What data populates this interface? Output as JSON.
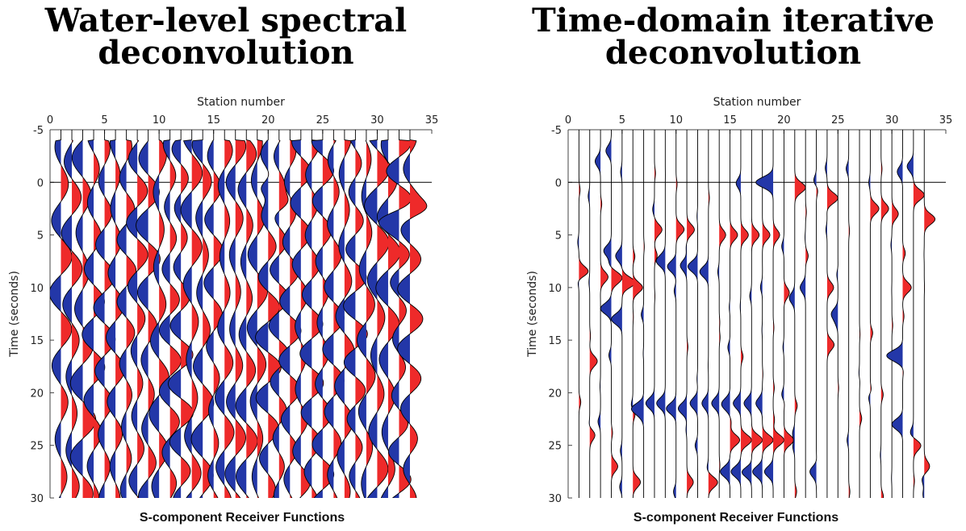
{
  "panels": [
    {
      "title_line1": "Water-level spectral",
      "title_line2": "deconvolution",
      "caption": "S-component Receiver Functions"
    },
    {
      "title_line1": "Time-domain iterative",
      "title_line2": "deconvolution",
      "caption": "S-component Receiver Functions"
    }
  ],
  "colors": {
    "positive": "#ee2a2a",
    "negative": "#2337a8",
    "trace": "#000000",
    "zero_line": "#000000"
  },
  "chart_data": [
    {
      "type": "wiggle",
      "title": "Water-level spectral deconvolution",
      "xlabel": "Station number",
      "ylabel": "Time (seconds)",
      "xlim": [
        0,
        35
      ],
      "ylim": [
        -5,
        30
      ],
      "y_reversed": true,
      "x_ticks": [
        0,
        5,
        10,
        15,
        20,
        25,
        30,
        35
      ],
      "y_ticks": [
        -5,
        0,
        5,
        10,
        15,
        20,
        25,
        30
      ],
      "stations": [
        1,
        2,
        3,
        4,
        5,
        6,
        7,
        8,
        9,
        10,
        11,
        12,
        13,
        14,
        15,
        16,
        17,
        18,
        19,
        20,
        21,
        22,
        23,
        24,
        25,
        26,
        27,
        28,
        29,
        30,
        31,
        32,
        33
      ],
      "zero_line_time": 0,
      "fill_positive": "#ee2a2a",
      "fill_negative": "#2337a8",
      "period_s": 6.2,
      "amplitude_stations": 1.1,
      "strong_pulses": [
        {
          "station": 20,
          "time": 0.5,
          "amp": -1.2
        },
        {
          "station": 21,
          "time": 2.0,
          "amp": 1.0
        },
        {
          "station": 33,
          "time": 2.5,
          "amp": 1.1
        },
        {
          "station": 32,
          "time": 3.5,
          "amp": -1.0
        }
      ]
    },
    {
      "type": "wiggle",
      "title": "Time-domain iterative deconvolution",
      "xlabel": "Station number",
      "ylabel": "Time (seconds)",
      "xlim": [
        0,
        35
      ],
      "ylim": [
        -5,
        30
      ],
      "y_reversed": true,
      "x_ticks": [
        0,
        5,
        10,
        15,
        20,
        25,
        30,
        35
      ],
      "y_ticks": [
        -5,
        0,
        5,
        10,
        15,
        20,
        25,
        30
      ],
      "stations": [
        1,
        2,
        3,
        4,
        5,
        6,
        7,
        8,
        9,
        10,
        11,
        12,
        13,
        14,
        15,
        16,
        17,
        18,
        19,
        20,
        21,
        22,
        23,
        24,
        25,
        26,
        27,
        28,
        29,
        30,
        31,
        32,
        33
      ],
      "zero_line_time": 0,
      "fill_positive": "#ee2a2a",
      "fill_negative": "#2337a8",
      "pulses": [
        {
          "station": 19,
          "time": 0.0,
          "amp": -1.6
        },
        {
          "station": 21,
          "time": 0.5,
          "amp": 1.0
        },
        {
          "station": 24,
          "time": 1.5,
          "amp": 1.0
        },
        {
          "station": 32,
          "time": 1.2,
          "amp": 1.0
        },
        {
          "station": 33,
          "time": 3.5,
          "amp": 1.0
        },
        {
          "station": 28,
          "time": 2.5,
          "amp": 0.8
        },
        {
          "station": 29,
          "time": 2.5,
          "amp": 0.7
        },
        {
          "station": 30,
          "time": 3.0,
          "amp": 0.6
        },
        {
          "station": 1,
          "time": 8.5,
          "amp": 0.9
        },
        {
          "station": 3,
          "time": 9.0,
          "amp": 0.7
        },
        {
          "station": 4,
          "time": 9.0,
          "amp": 0.9
        },
        {
          "station": 5,
          "time": 9.5,
          "amp": 1.1
        },
        {
          "station": 6,
          "time": 10.0,
          "amp": 0.9
        },
        {
          "station": 4,
          "time": 12.0,
          "amp": -1.0
        },
        {
          "station": 5,
          "time": 13.0,
          "amp": -1.0
        },
        {
          "station": 4,
          "time": 6.5,
          "amp": -0.7
        },
        {
          "station": 5,
          "time": 7.0,
          "amp": -0.6
        },
        {
          "station": 7,
          "time": 21.5,
          "amp": -1.1
        },
        {
          "station": 8,
          "time": 21.0,
          "amp": -0.8
        },
        {
          "station": 9,
          "time": 21.0,
          "amp": -0.8
        },
        {
          "station": 10,
          "time": 21.5,
          "amp": -0.9
        },
        {
          "station": 11,
          "time": 21.5,
          "amp": -0.8
        },
        {
          "station": 12,
          "time": 21.0,
          "amp": -0.7
        },
        {
          "station": 13,
          "time": 21.0,
          "amp": -0.6
        },
        {
          "station": 14,
          "time": 21.0,
          "amp": -0.7
        },
        {
          "station": 15,
          "time": 21.0,
          "amp": -0.7
        },
        {
          "station": 16,
          "time": 21.0,
          "amp": -0.7
        },
        {
          "station": 17,
          "time": 21.0,
          "amp": -0.7
        },
        {
          "station": 18,
          "time": 21.0,
          "amp": -0.6
        },
        {
          "station": 15,
          "time": 24.5,
          "amp": 0.9
        },
        {
          "station": 16,
          "time": 24.5,
          "amp": 1.0
        },
        {
          "station": 17,
          "time": 24.5,
          "amp": 1.0
        },
        {
          "station": 18,
          "time": 24.5,
          "amp": 1.0
        },
        {
          "station": 19,
          "time": 24.5,
          "amp": 1.0
        },
        {
          "station": 20,
          "time": 24.5,
          "amp": 0.9
        },
        {
          "station": 15,
          "time": 27.5,
          "amp": -0.9
        },
        {
          "station": 16,
          "time": 27.5,
          "amp": -0.9
        },
        {
          "station": 17,
          "time": 27.5,
          "amp": -0.9
        },
        {
          "station": 18,
          "time": 27.5,
          "amp": -0.9
        },
        {
          "station": 19,
          "time": 27.5,
          "amp": -0.8
        },
        {
          "station": 14,
          "time": 5.0,
          "amp": 0.6
        },
        {
          "station": 15,
          "time": 5.0,
          "amp": 0.7
        },
        {
          "station": 16,
          "time": 5.0,
          "amp": 0.7
        },
        {
          "station": 17,
          "time": 5.0,
          "amp": 0.7
        },
        {
          "station": 18,
          "time": 5.0,
          "amp": 0.7
        },
        {
          "station": 19,
          "time": 5.0,
          "amp": 0.6
        },
        {
          "station": 9,
          "time": 7.5,
          "amp": -0.8
        },
        {
          "station": 10,
          "time": 8.0,
          "amp": -0.8
        },
        {
          "station": 11,
          "time": 8.0,
          "amp": -0.8
        },
        {
          "station": 12,
          "time": 8.0,
          "amp": -0.9
        },
        {
          "station": 13,
          "time": 8.5,
          "amp": -0.8
        },
        {
          "station": 8,
          "time": 4.5,
          "amp": 0.7
        },
        {
          "station": 10,
          "time": 4.5,
          "amp": 0.7
        },
        {
          "station": 11,
          "time": 4.5,
          "amp": 0.7
        },
        {
          "station": 31,
          "time": 16.5,
          "amp": -1.4
        },
        {
          "station": 31,
          "time": 23.0,
          "amp": -1.0
        },
        {
          "station": 31,
          "time": 10.0,
          "amp": 0.8
        },
        {
          "station": 24,
          "time": 15.5,
          "amp": 0.8
        },
        {
          "station": 2,
          "time": 17.0,
          "amp": 0.7
        },
        {
          "station": 2,
          "time": 24.0,
          "amp": 0.5
        },
        {
          "station": 6,
          "time": 28.5,
          "amp": 0.7
        },
        {
          "station": 4,
          "time": 27.0,
          "amp": 0.6
        },
        {
          "station": 11,
          "time": 28.5,
          "amp": 0.6
        },
        {
          "station": 13,
          "time": 28.5,
          "amp": 0.8
        },
        {
          "station": 24,
          "time": 10.0,
          "amp": 0.6
        },
        {
          "station": 25,
          "time": 12.5,
          "amp": -0.6
        },
        {
          "station": 32,
          "time": 25.0,
          "amp": 0.7
        },
        {
          "station": 33,
          "time": 27.0,
          "amp": 0.5
        },
        {
          "station": 23,
          "time": 27.5,
          "amp": -0.6
        },
        {
          "station": 22,
          "time": 10.0,
          "amp": -0.5
        },
        {
          "station": 20,
          "time": 10.5,
          "amp": 0.5
        },
        {
          "station": 21,
          "time": 11.0,
          "amp": -0.5
        },
        {
          "station": 3,
          "time": -2.0,
          "amp": -0.5
        },
        {
          "station": 4,
          "time": -3.0,
          "amp": -0.5
        },
        {
          "station": 32,
          "time": -1.5,
          "amp": -0.6
        },
        {
          "station": 31,
          "time": -1.0,
          "amp": -0.5
        }
      ]
    }
  ]
}
